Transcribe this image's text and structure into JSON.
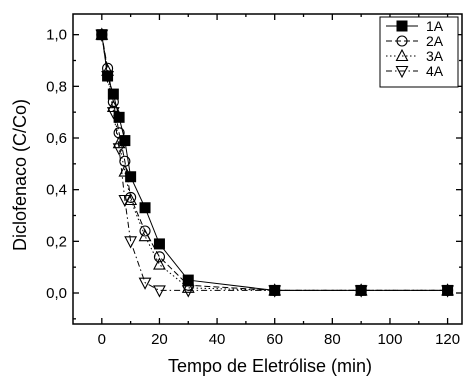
{
  "chart_data": {
    "type": "line",
    "xlabel": "Tempo de Eletrólise (min)",
    "ylabel": "Diclofenaco (C/Co)",
    "xlim": [
      -10,
      125
    ],
    "ylim": [
      -0.12,
      1.08
    ],
    "xticks": [
      0,
      20,
      40,
      60,
      80,
      100,
      120
    ],
    "xtick_labels": [
      "0",
      "20",
      "40",
      "60",
      "80",
      "100",
      "120"
    ],
    "yticks": [
      0.0,
      0.2,
      0.4,
      0.6,
      0.8,
      1.0
    ],
    "ytick_labels": [
      "0,0",
      "0,2",
      "0,4",
      "0,6",
      "0,8",
      "1,0"
    ],
    "grid": false,
    "legend_position": "top-right",
    "series": [
      {
        "name": "1A",
        "marker": "square-filled",
        "line": "solid",
        "x": [
          0,
          2,
          4,
          6,
          8,
          10,
          15,
          20,
          30,
          60,
          90,
          120
        ],
        "y": [
          1.0,
          0.84,
          0.77,
          0.68,
          0.59,
          0.45,
          0.33,
          0.19,
          0.05,
          0.01,
          0.01,
          0.01
        ]
      },
      {
        "name": "2A",
        "marker": "circle-open",
        "line": "dashed",
        "x": [
          0,
          2,
          4,
          6,
          8,
          10,
          15,
          20,
          30,
          60,
          90,
          120
        ],
        "y": [
          1.0,
          0.87,
          0.74,
          0.62,
          0.51,
          0.37,
          0.24,
          0.14,
          0.03,
          0.01,
          0.01,
          0.01
        ]
      },
      {
        "name": "3A",
        "marker": "triangle-up-open",
        "line": "dotted",
        "x": [
          0,
          2,
          4,
          6,
          8,
          10,
          15,
          20,
          30,
          60,
          90,
          120
        ],
        "y": [
          1.0,
          0.86,
          0.72,
          0.58,
          0.47,
          0.36,
          0.22,
          0.11,
          0.02,
          0.01,
          0.01,
          0.01
        ]
      },
      {
        "name": "4A",
        "marker": "triangle-down-open",
        "line": "dashdot",
        "x": [
          0,
          2,
          4,
          6,
          8,
          10,
          15,
          20,
          30,
          60,
          90,
          120
        ],
        "y": [
          1.0,
          0.84,
          0.7,
          0.56,
          0.36,
          0.2,
          0.04,
          0.01,
          0.01,
          0.01,
          0.01,
          0.01
        ]
      }
    ]
  }
}
